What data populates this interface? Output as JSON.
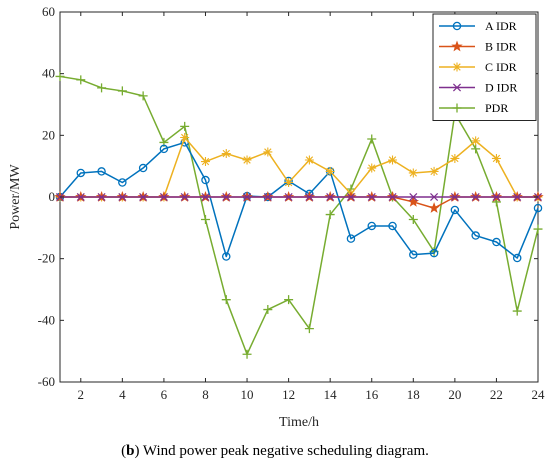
{
  "chart_data": {
    "type": "line",
    "xlabel": "Time/h",
    "ylabel": "Power/MW",
    "xlim": [
      1,
      24
    ],
    "ylim": [
      -60,
      60
    ],
    "xticks": [
      2,
      4,
      6,
      8,
      10,
      12,
      14,
      16,
      18,
      20,
      22,
      24
    ],
    "yticks": [
      -60,
      -40,
      -20,
      0,
      20,
      40,
      60
    ],
    "grid": false,
    "legend_position": "top-right",
    "x": [
      1,
      2,
      3,
      4,
      5,
      6,
      7,
      8,
      9,
      10,
      11,
      12,
      13,
      14,
      15,
      16,
      17,
      18,
      19,
      20,
      21,
      22,
      23,
      24
    ],
    "series": [
      {
        "name": "A IDR",
        "color": "#0072BD",
        "marker": "circle",
        "values": [
          0,
          7.8,
          8.3,
          4.7,
          9.4,
          15.6,
          17.7,
          5.5,
          -19.3,
          0.3,
          0,
          5.2,
          1,
          8.3,
          -13.5,
          -9.4,
          -9.4,
          -18.7,
          -18.2,
          -4.2,
          -12.5,
          -14.6,
          -19.8,
          -3.6
        ]
      },
      {
        "name": "B IDR",
        "color": "#D95319",
        "marker": "star",
        "values": [
          0,
          0,
          0,
          0,
          0,
          0,
          0,
          0,
          0,
          0,
          0,
          0,
          0,
          0,
          0,
          0,
          0,
          -1.6,
          -3.6,
          0,
          0,
          0,
          0,
          0
        ]
      },
      {
        "name": "C IDR",
        "color": "#EDB120",
        "marker": "asterisk",
        "values": [
          0,
          0,
          0,
          0,
          0,
          0,
          19.3,
          11.5,
          14.1,
          12,
          14.6,
          4.7,
          12,
          8.3,
          1,
          9.4,
          12,
          7.8,
          8.3,
          12.5,
          18.2,
          12.5,
          0,
          0
        ]
      },
      {
        "name": "D IDR",
        "color": "#7E2F8E",
        "marker": "x",
        "values": [
          0,
          0,
          0,
          0,
          0,
          0,
          0,
          0,
          0,
          0,
          0,
          0,
          0,
          0,
          0,
          0,
          0,
          0,
          0,
          0,
          0,
          0,
          0,
          0
        ]
      },
      {
        "name": "PDR",
        "color": "#77AC30",
        "marker": "plus",
        "values": [
          39.1,
          38,
          35.4,
          34.4,
          32.8,
          17.7,
          22.9,
          -7.3,
          -33.3,
          -51,
          -36.5,
          -33.3,
          -42.7,
          -5.7,
          2.6,
          18.8,
          0,
          -7.3,
          -17.7,
          27.1,
          15.6,
          -1.6,
          -37,
          -10.4
        ]
      }
    ]
  },
  "caption": {
    "open": "(",
    "bold": "b",
    "rest": ") Wind power peak negative scheduling diagram."
  }
}
